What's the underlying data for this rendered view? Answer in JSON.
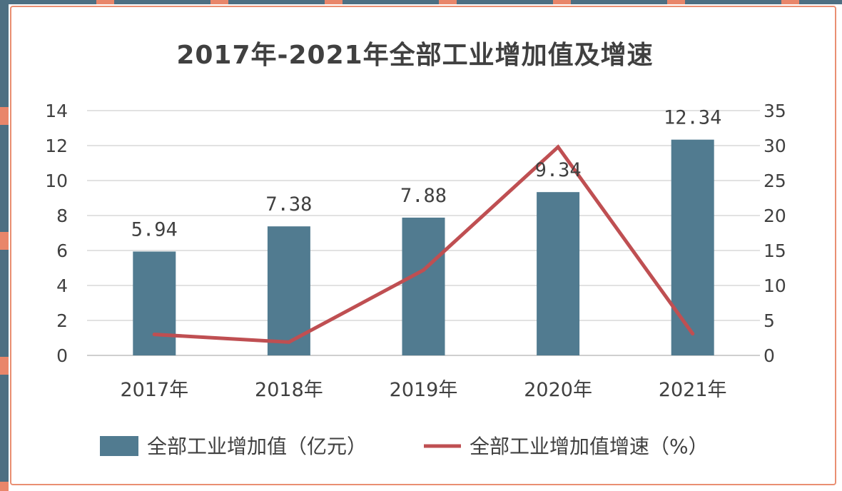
{
  "chart_data": {
    "type": "bar",
    "title": "2017年-2021年全部工业增加值及增速",
    "categories": [
      "2017年",
      "2018年",
      "2019年",
      "2020年",
      "2021年"
    ],
    "series": [
      {
        "name": "全部工业增加值（亿元）",
        "type": "bar",
        "axis": "left",
        "values": [
          5.94,
          7.38,
          7.88,
          9.34,
          12.34
        ],
        "data_labels": [
          "5.94",
          "7.38",
          "7.88",
          "9.34",
          "12.34"
        ],
        "color": "#517b90"
      },
      {
        "name": "全部工业增加值增速（%）",
        "type": "line",
        "axis": "right",
        "values": [
          3.0,
          1.9,
          12.2,
          29.8,
          3.1
        ],
        "color": "#bf4f52"
      }
    ],
    "y_left": {
      "min": 0,
      "max": 14,
      "ticks": [
        "0",
        "2",
        "4",
        "6",
        "8",
        "10",
        "12",
        "14"
      ]
    },
    "y_right": {
      "min": 0,
      "max": 35,
      "ticks": [
        "0",
        "5",
        "10",
        "15",
        "20",
        "25",
        "30",
        "35"
      ]
    },
    "grid": true,
    "legend_position": "bottom"
  }
}
